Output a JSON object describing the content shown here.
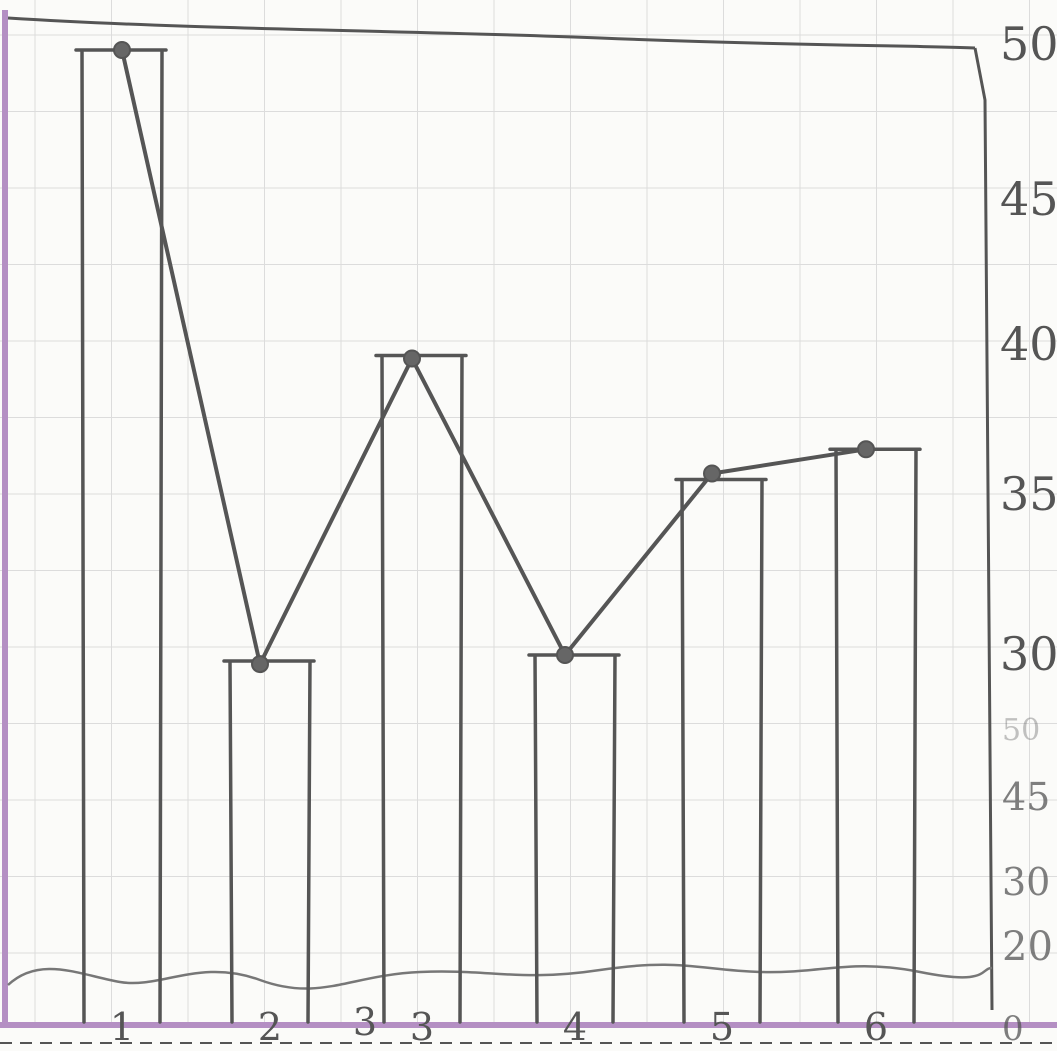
{
  "chart_data": {
    "type": "bar",
    "categories": [
      "1",
      "2",
      "3",
      "4",
      "5",
      "6"
    ],
    "series": [
      {
        "values": [
          50,
          29.8,
          39.9,
          30,
          35.8,
          36.8
        ]
      }
    ],
    "line_series": [
      {
        "values": [
          50,
          29.7,
          39.8,
          30,
          36,
          36.8
        ]
      }
    ],
    "y_ticks": [
      "50",
      "45",
      "40",
      "35",
      "30"
    ],
    "y_ticks_faded": [
      "50",
      "45",
      "30",
      "20",
      "0"
    ],
    "x_ticks_extra": [
      "3"
    ],
    "ylim": [
      20,
      50
    ],
    "grid": true,
    "colors": {
      "ink": "#555555",
      "axis": "#b48fc3",
      "grid": "#dcdcdc"
    }
  }
}
